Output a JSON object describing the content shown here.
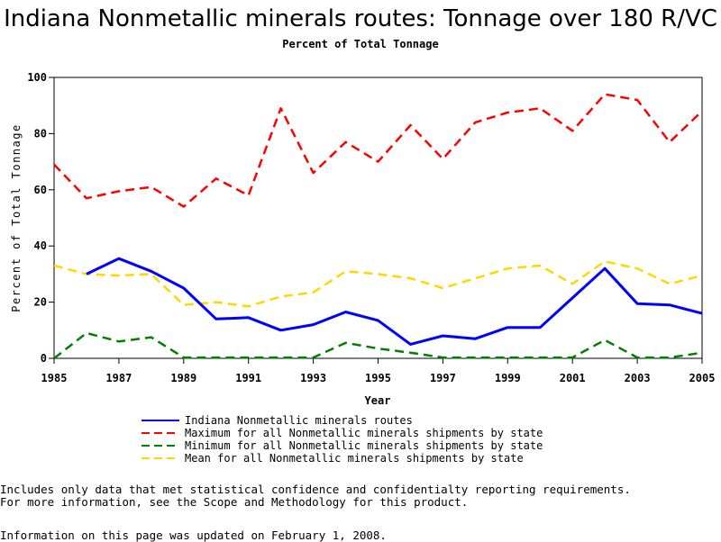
{
  "chart_data": {
    "type": "line",
    "title": "Indiana Nonmetallic minerals routes: Tonnage over 180 R/VC",
    "subtitle": "Percent of Total Tonnage",
    "xlabel": "Year",
    "ylabel": "Percent of Total Tonnage",
    "ylim": [
      0,
      100
    ],
    "xlim": [
      1985,
      2005
    ],
    "yticks": [
      "0",
      "20",
      "40",
      "60",
      "80",
      "100"
    ],
    "xticks": [
      "1985",
      "1987",
      "1989",
      "1991",
      "1993",
      "1995",
      "1997",
      "1999",
      "2001",
      "2003",
      "2005"
    ],
    "grid": false,
    "legend_position": "bottom",
    "series": [
      {
        "name": "Indiana Nonmetallic minerals routes",
        "color": "#0000ff",
        "dash": "solid",
        "x": [
          1986,
          1987,
          1988,
          1989,
          1990,
          1991,
          1992,
          1993,
          1994,
          1995,
          1996,
          1997,
          1998,
          1999,
          2000,
          2001,
          2002,
          2003,
          2004,
          2005
        ],
        "values": [
          30,
          35.5,
          31,
          25,
          14,
          14.5,
          10,
          12,
          16.5,
          13.5,
          5,
          8,
          7,
          11,
          11,
          21.5,
          32,
          19.5,
          19,
          16
        ]
      },
      {
        "name": "Maximum for all Nonmetallic minerals shipments by state",
        "color": "#ff0000",
        "dash": "dashed",
        "x": [
          1985,
          1986,
          1987,
          1988,
          1989,
          1990,
          1991,
          1992,
          1993,
          1994,
          1995,
          1996,
          1997,
          1998,
          1999,
          2000,
          2001,
          2002,
          2003,
          2004,
          2005
        ],
        "values": [
          69,
          57,
          59.5,
          61,
          54,
          64,
          58,
          89,
          66,
          77,
          70,
          83,
          71,
          84,
          87.5,
          89,
          81,
          94,
          92,
          77,
          88
        ]
      },
      {
        "name": "Minimum for all Nonmetallic minerals shipments by state",
        "color": "#008000",
        "dash": "dashed",
        "x": [
          1985,
          1986,
          1987,
          1988,
          1989,
          1990,
          1991,
          1992,
          1993,
          1994,
          1995,
          1996,
          1997,
          1998,
          1999,
          2000,
          2001,
          2002,
          2003,
          2004,
          2005
        ],
        "values": [
          0,
          9,
          6,
          7.5,
          0.3,
          0.3,
          0.3,
          0.3,
          0.3,
          5.5,
          3.5,
          2,
          0.3,
          0.3,
          0.3,
          0.3,
          0.3,
          6.5,
          0.3,
          0.3,
          2
        ]
      },
      {
        "name": "Mean for all Nonmetallic minerals shipments by state",
        "color": "#ffd700",
        "dash": "dashed",
        "x": [
          1985,
          1986,
          1987,
          1988,
          1989,
          1990,
          1991,
          1992,
          1993,
          1994,
          1995,
          1996,
          1997,
          1998,
          1999,
          2000,
          2001,
          2002,
          2003,
          2004,
          2005
        ],
        "values": [
          33,
          30,
          29.5,
          30,
          19,
          20,
          18.5,
          22,
          23.5,
          31,
          30,
          28.5,
          25,
          28.5,
          32,
          33,
          26.5,
          34.5,
          32,
          26.5,
          29.5
        ]
      }
    ]
  },
  "notes": {
    "line1": "Includes only data that met statistical confidence and confidentialty reporting requirements.",
    "line2": "For more information, see the Scope and Methodology for this product.",
    "updated": "Information on this page was updated on February 1, 2008."
  }
}
